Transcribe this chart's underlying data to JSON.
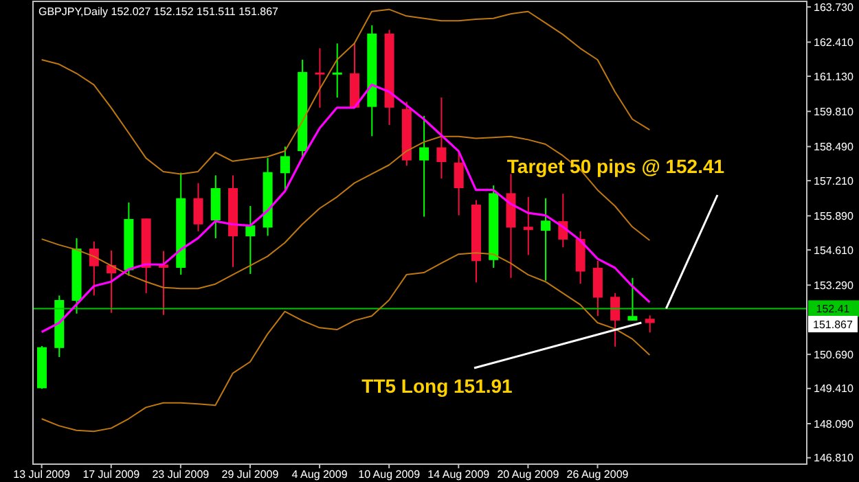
{
  "chart_data": {
    "type": "candlestick",
    "title": "GBPJPY,Daily  152.027 152.152 151.511 151.867",
    "categories": [
      "13 Jul 2009",
      null,
      null,
      null,
      "17 Jul 2009",
      null,
      null,
      null,
      "23 Jul 2009",
      null,
      null,
      null,
      "29 Jul 2009",
      null,
      null,
      null,
      "4 Aug 2009",
      null,
      null,
      null,
      "10 Aug 2009",
      null,
      null,
      null,
      "14 Aug 2009",
      null,
      null,
      null,
      "20 Aug 2009",
      null,
      null,
      null,
      "26 Aug 2009",
      null,
      null,
      null
    ],
    "ohlc": [
      [
        149.42,
        151.0,
        149.4,
        150.96
      ],
      [
        150.93,
        152.9,
        150.59,
        152.73
      ],
      [
        152.7,
        155.05,
        152.22,
        154.66
      ],
      [
        154.66,
        154.93,
        152.9,
        154.0
      ],
      [
        154.04,
        154.59,
        152.25,
        153.73
      ],
      [
        153.85,
        156.39,
        153.64,
        155.77
      ],
      [
        155.79,
        155.79,
        152.99,
        153.94
      ],
      [
        154.06,
        154.57,
        152.17,
        153.94
      ],
      [
        153.94,
        157.51,
        153.68,
        156.55
      ],
      [
        156.55,
        157.12,
        155.31,
        155.57
      ],
      [
        155.72,
        157.41,
        155.05,
        156.93
      ],
      [
        156.93,
        157.41,
        153.97,
        155.12
      ],
      [
        155.12,
        156.26,
        153.71,
        155.53
      ],
      [
        155.45,
        158.06,
        155.14,
        157.53
      ],
      [
        157.49,
        158.49,
        156.86,
        158.13
      ],
      [
        158.32,
        161.75,
        158.01,
        161.29
      ],
      [
        161.27,
        162.18,
        159.95,
        161.2
      ],
      [
        161.19,
        162.36,
        160.33,
        161.27
      ],
      [
        161.24,
        162.36,
        159.95,
        159.95
      ],
      [
        159.98,
        163.04,
        158.88,
        162.73
      ],
      [
        162.73,
        162.87,
        159.3,
        159.95
      ],
      [
        159.9,
        160.17,
        157.77,
        157.97
      ],
      [
        157.97,
        159.64,
        155.86,
        158.46
      ],
      [
        158.46,
        160.33,
        157.29,
        157.91
      ],
      [
        157.89,
        158.27,
        155.91,
        156.93
      ],
      [
        156.31,
        156.48,
        153.39,
        154.19
      ],
      [
        154.23,
        157.03,
        153.94,
        156.74
      ],
      [
        156.74,
        157.46,
        153.56,
        155.45
      ],
      [
        155.48,
        156.6,
        154.42,
        155.36
      ],
      [
        155.33,
        156.55,
        153.46,
        155.71
      ],
      [
        155.69,
        156.72,
        154.71,
        155.0
      ],
      [
        155.02,
        155.31,
        153.34,
        153.8
      ],
      [
        153.94,
        154.2,
        152.13,
        152.82
      ],
      [
        152.85,
        152.99,
        150.98,
        151.96
      ],
      [
        151.96,
        153.56,
        151.96,
        152.13
      ],
      [
        152.027,
        152.152,
        151.511,
        151.867
      ]
    ],
    "colors": [
      "#00ff00",
      "#00ff00",
      "#00ff00",
      "#f5103c",
      "#f5103c",
      "#00ff00",
      "#f5103c",
      "#f5103c",
      "#00ff00",
      "#f5103c",
      "#00ff00",
      "#f5103c",
      "#00ff00",
      "#00ff00",
      "#00ff00",
      "#00ff00",
      "#f5103c",
      "#00ff00",
      "#f5103c",
      "#00ff00",
      "#f5103c",
      "#f5103c",
      "#00ff00",
      "#f5103c",
      "#f5103c",
      "#f5103c",
      "#00ff00",
      "#f5103c",
      "#f5103c",
      "#00ff00",
      "#f5103c",
      "#f5103c",
      "#f5103c",
      "#f5103c",
      "#00ff00",
      "#f5103c"
    ],
    "series": [
      {
        "type": "line",
        "color": "#c07810",
        "values": [
          161.75,
          161.58,
          161.24,
          160.81,
          159.95,
          159.01,
          158.06,
          157.55,
          157.46,
          157.55,
          158.27,
          157.94,
          158.03,
          158.11,
          158.32,
          159.43,
          160.64,
          161.75,
          162.36,
          163.56,
          163.64,
          163.39,
          163.3,
          163.21,
          163.21,
          163.27,
          163.3,
          163.47,
          163.56,
          163.13,
          162.7,
          162.18,
          161.75,
          160.55,
          159.52,
          159.12
        ]
      },
      {
        "type": "line",
        "color": "#c07810",
        "values": [
          155.02,
          154.8,
          154.62,
          154.37,
          154.02,
          153.68,
          153.42,
          153.2,
          153.16,
          153.16,
          153.33,
          153.68,
          154.02,
          154.37,
          154.88,
          155.57,
          156.17,
          156.6,
          157.12,
          157.46,
          157.8,
          158.32,
          158.66,
          158.87,
          158.87,
          158.8,
          158.83,
          158.87,
          158.75,
          158.58,
          158.15,
          157.63,
          156.86,
          156.26,
          155.48,
          154.97
        ]
      },
      {
        "type": "line",
        "color": "#c07810",
        "values": [
          148.27,
          148.01,
          147.84,
          147.8,
          147.92,
          148.27,
          148.7,
          148.87,
          148.87,
          148.83,
          148.78,
          149.98,
          150.41,
          151.45,
          152.3,
          151.96,
          151.69,
          151.62,
          151.96,
          152.13,
          152.73,
          153.68,
          153.76,
          154.11,
          154.45,
          154.5,
          154.45,
          154.11,
          153.68,
          153.42,
          152.99,
          152.56,
          151.88,
          151.65,
          151.27,
          150.67
        ]
      },
      {
        "type": "line",
        "color": "#ff00ff",
        "values": [
          151.53,
          151.87,
          152.56,
          153.25,
          153.42,
          153.88,
          154.07,
          154.06,
          154.62,
          155.05,
          155.69,
          155.57,
          155.52,
          156.08,
          156.81,
          158.06,
          159.18,
          159.95,
          159.95,
          160.81,
          160.55,
          160.04,
          159.52,
          158.92,
          158.32,
          156.86,
          156.86,
          156.34,
          156.0,
          155.91,
          155.48,
          154.97,
          154.28,
          153.94,
          153.25,
          152.65
        ]
      }
    ],
    "ylim": [
      146.57,
      163.94
    ],
    "yticks": [
      {
        "value": 163.73,
        "label": "163.730"
      },
      {
        "value": 162.41,
        "label": "162.410"
      },
      {
        "value": 161.13,
        "label": "161.130"
      },
      {
        "value": 159.81,
        "label": "159.810"
      },
      {
        "value": 158.49,
        "label": "158.490"
      },
      {
        "value": 157.21,
        "label": "157.210"
      },
      {
        "value": 155.89,
        "label": "155.890"
      },
      {
        "value": 154.61,
        "label": "154.610"
      },
      {
        "value": 153.29,
        "label": "153.290"
      },
      {
        "value": 150.69,
        "label": "150.690"
      },
      {
        "value": 149.41,
        "label": "149.410"
      },
      {
        "value": 148.09,
        "label": "148.090"
      },
      {
        "value": 146.81,
        "label": "146.810"
      }
    ],
    "ref_lines": [
      {
        "axis": "y",
        "value": 152.41,
        "label": "152.41",
        "color": "#00c800"
      }
    ],
    "annotations": [
      "Target 50 pips @ 152.41",
      "TT5 Long 151.91",
      "151.867"
    ]
  }
}
